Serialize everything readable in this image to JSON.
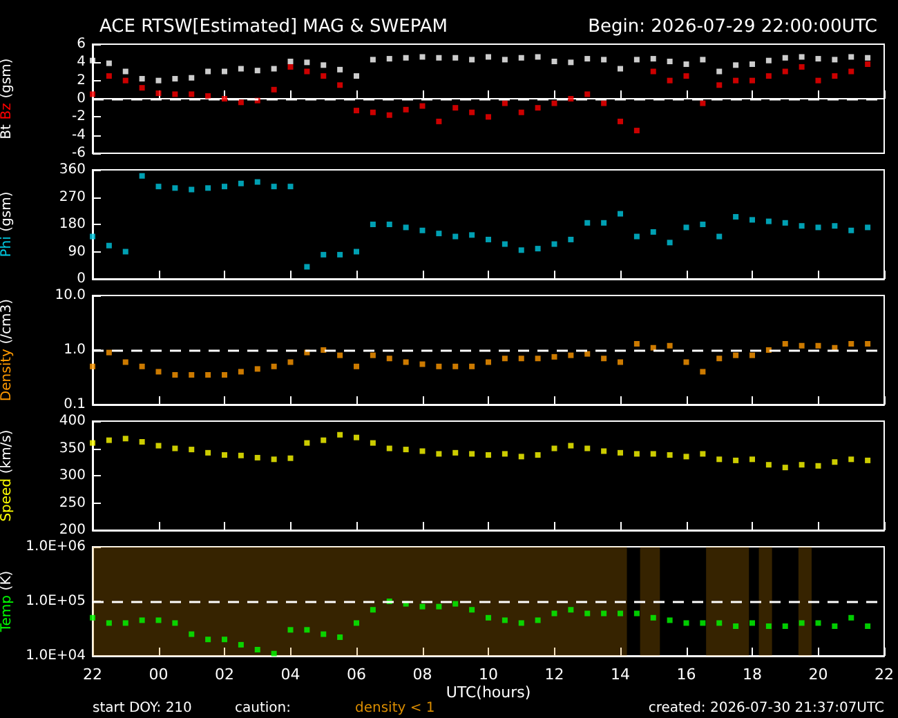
{
  "chart_data": [
    {
      "type": "scatter",
      "title": "ACE RTSW[Estimated] MAG & SWEPAM",
      "subtitle": "Begin: 2026-07-29 22:00:00UTC",
      "ylabel": "(gsm)",
      "marker": "square",
      "tick_labels": "y",
      "xlim": [
        "2026-07-29T22:00",
        "2026-07-30T22:00"
      ],
      "xticks": [
        {
          "value": "2026-07-29T22:00",
          "label": null
        },
        {
          "value": "2026-07-30T00:00",
          "label": null
        },
        {
          "value": "2026-07-30T02:00",
          "label": null
        },
        {
          "value": "2026-07-30T04:00",
          "label": null
        },
        {
          "value": "2026-07-30T06:00",
          "label": null
        },
        {
          "value": "2026-07-30T08:00",
          "label": null
        },
        {
          "value": "2026-07-30T10:00",
          "label": null
        },
        {
          "value": "2026-07-30T12:00",
          "label": null
        },
        {
          "value": "2026-07-30T14:00",
          "label": null
        },
        {
          "value": "2026-07-30T16:00",
          "label": null
        },
        {
          "value": "2026-07-30T18:00",
          "label": null
        },
        {
          "value": "2026-07-30T20:00",
          "label": null
        },
        {
          "value": "2026-07-30T22:00",
          "label": null
        }
      ],
      "ylim": [
        -6,
        6
      ],
      "yticks": [
        -6,
        -4,
        -2,
        0,
        2,
        4,
        6
      ],
      "x": [
        "2026-07-29T22:00",
        "2026-07-29T22:30",
        "2026-07-29T23:00",
        "2026-07-29T23:30",
        "2026-07-30T00:00",
        "2026-07-30T00:30",
        "2026-07-30T01:00",
        "2026-07-30T01:30",
        "2026-07-30T02:00",
        "2026-07-30T02:30",
        "2026-07-30T03:00",
        "2026-07-30T03:30",
        "2026-07-30T04:00",
        "2026-07-30T04:30",
        "2026-07-30T05:00",
        "2026-07-30T05:30",
        "2026-07-30T06:00",
        "2026-07-30T06:30",
        "2026-07-30T07:00",
        "2026-07-30T07:30",
        "2026-07-30T08:00",
        "2026-07-30T08:30",
        "2026-07-30T09:00",
        "2026-07-30T09:30",
        "2026-07-30T10:00",
        "2026-07-30T10:30",
        "2026-07-30T11:00",
        "2026-07-30T11:30",
        "2026-07-30T12:00",
        "2026-07-30T12:30",
        "2026-07-30T13:00",
        "2026-07-30T13:30",
        "2026-07-30T14:00",
        "2026-07-30T14:30",
        "2026-07-30T15:00",
        "2026-07-30T15:30",
        "2026-07-30T16:00",
        "2026-07-30T16:30",
        "2026-07-30T17:00",
        "2026-07-30T17:30",
        "2026-07-30T18:00",
        "2026-07-30T18:30",
        "2026-07-30T19:00",
        "2026-07-30T19:30",
        "2026-07-30T20:00",
        "2026-07-30T20:30",
        "2026-07-30T21:00",
        "2026-07-30T21:30"
      ],
      "series": [
        {
          "name": "Bt",
          "color": "#ffffff",
          "values": [
            4.2,
            3.9,
            3.0,
            2.2,
            2.0,
            2.2,
            2.3,
            3.0,
            3.0,
            3.3,
            3.1,
            3.3,
            4.1,
            4.0,
            3.7,
            3.2,
            2.5,
            4.3,
            4.4,
            4.5,
            4.6,
            4.5,
            4.5,
            4.3,
            4.6,
            4.3,
            4.5,
            4.6,
            4.1,
            4.0,
            4.4,
            4.3,
            3.3,
            4.3,
            4.4,
            4.1,
            3.8,
            4.3,
            3.0,
            3.7,
            3.8,
            4.2,
            4.5,
            4.6,
            4.4,
            4.3,
            4.6,
            4.5
          ]
        },
        {
          "name": "Bz",
          "color": "#ff0000",
          "values": [
            0.5,
            2.5,
            2.0,
            1.2,
            0.6,
            0.5,
            0.5,
            0.3,
            0.0,
            -0.4,
            -0.2,
            1.0,
            3.5,
            3.0,
            2.5,
            1.5,
            -1.3,
            -1.5,
            -1.8,
            -1.2,
            -0.8,
            -2.5,
            -1.0,
            -1.5,
            -2.0,
            -0.5,
            -1.5,
            -1.0,
            -0.5,
            0.0,
            0.5,
            -0.5,
            -2.5,
            -3.5,
            3.0,
            2.0,
            2.5,
            -0.5,
            1.5,
            2.0,
            2.0,
            2.5,
            3.0,
            3.5,
            2.0,
            2.5,
            3.0,
            3.8
          ]
        }
      ],
      "ref_lines": [
        {
          "axis": "y",
          "value": 0,
          "color": "#ffffff",
          "line_style": "dashed"
        }
      ]
    },
    {
      "type": "scatter",
      "ylabel": "(gsm)",
      "marker": "square",
      "tick_labels": "y",
      "xlim": [
        "2026-07-29T22:00",
        "2026-07-30T22:00"
      ],
      "xticks": [
        {
          "value": "2026-07-29T22:00",
          "label": null
        },
        {
          "value": "2026-07-30T00:00",
          "label": null
        },
        {
          "value": "2026-07-30T02:00",
          "label": null
        },
        {
          "value": "2026-07-30T04:00",
          "label": null
        },
        {
          "value": "2026-07-30T06:00",
          "label": null
        },
        {
          "value": "2026-07-30T08:00",
          "label": null
        },
        {
          "value": "2026-07-30T10:00",
          "label": null
        },
        {
          "value": "2026-07-30T12:00",
          "label": null
        },
        {
          "value": "2026-07-30T14:00",
          "label": null
        },
        {
          "value": "2026-07-30T16:00",
          "label": null
        },
        {
          "value": "2026-07-30T18:00",
          "label": null
        },
        {
          "value": "2026-07-30T20:00",
          "label": null
        },
        {
          "value": "2026-07-30T22:00",
          "label": null
        }
      ],
      "ylim": [
        0,
        360
      ],
      "yticks": [
        0,
        90,
        180,
        270,
        360
      ],
      "x": [
        "2026-07-29T22:00",
        "2026-07-29T22:30",
        "2026-07-29T23:00",
        "2026-07-29T23:30",
        "2026-07-30T00:00",
        "2026-07-30T00:30",
        "2026-07-30T01:00",
        "2026-07-30T01:30",
        "2026-07-30T02:00",
        "2026-07-30T02:30",
        "2026-07-30T03:00",
        "2026-07-30T03:30",
        "2026-07-30T04:00",
        "2026-07-30T04:30",
        "2026-07-30T05:00",
        "2026-07-30T05:30",
        "2026-07-30T06:00",
        "2026-07-30T06:30",
        "2026-07-30T07:00",
        "2026-07-30T07:30",
        "2026-07-30T08:00",
        "2026-07-30T08:30",
        "2026-07-30T09:00",
        "2026-07-30T09:30",
        "2026-07-30T10:00",
        "2026-07-30T10:30",
        "2026-07-30T11:00",
        "2026-07-30T11:30",
        "2026-07-30T12:00",
        "2026-07-30T12:30",
        "2026-07-30T13:00",
        "2026-07-30T13:30",
        "2026-07-30T14:00",
        "2026-07-30T14:30",
        "2026-07-30T15:00",
        "2026-07-30T15:30",
        "2026-07-30T16:00",
        "2026-07-30T16:30",
        "2026-07-30T17:00",
        "2026-07-30T17:30",
        "2026-07-30T18:00",
        "2026-07-30T18:30",
        "2026-07-30T19:00",
        "2026-07-30T19:30",
        "2026-07-30T20:00",
        "2026-07-30T20:30",
        "2026-07-30T21:00",
        "2026-07-30T21:30"
      ],
      "series": [
        {
          "name": "Phi",
          "color": "#00c8e0",
          "values": [
            140,
            110,
            90,
            340,
            305,
            300,
            295,
            300,
            305,
            315,
            320,
            305,
            305,
            40,
            80,
            80,
            90,
            180,
            180,
            170,
            160,
            150,
            140,
            145,
            130,
            115,
            95,
            100,
            115,
            130,
            185,
            185,
            215,
            140,
            155,
            120,
            170,
            180,
            140,
            205,
            195,
            190,
            185,
            175,
            170,
            175,
            160,
            170
          ]
        }
      ]
    },
    {
      "type": "scatter",
      "ylabel": "(/cm3)",
      "marker": "square",
      "tick_labels": "y",
      "log": true,
      "xlim": [
        "2026-07-29T22:00",
        "2026-07-30T22:00"
      ],
      "xticks": [
        {
          "value": "2026-07-29T22:00",
          "label": null
        },
        {
          "value": "2026-07-30T00:00",
          "label": null
        },
        {
          "value": "2026-07-30T02:00",
          "label": null
        },
        {
          "value": "2026-07-30T04:00",
          "label": null
        },
        {
          "value": "2026-07-30T06:00",
          "label": null
        },
        {
          "value": "2026-07-30T08:00",
          "label": null
        },
        {
          "value": "2026-07-30T10:00",
          "label": null
        },
        {
          "value": "2026-07-30T12:00",
          "label": null
        },
        {
          "value": "2026-07-30T14:00",
          "label": null
        },
        {
          "value": "2026-07-30T16:00",
          "label": null
        },
        {
          "value": "2026-07-30T18:00",
          "label": null
        },
        {
          "value": "2026-07-30T20:00",
          "label": null
        },
        {
          "value": "2026-07-30T22:00",
          "label": null
        }
      ],
      "ylim": [
        0.1,
        10
      ],
      "yticks": [
        0.1,
        {
          "value": 1,
          "label": "1.0"
        },
        {
          "value": 10,
          "label": "10.0"
        }
      ],
      "x": [
        "2026-07-29T22:00",
        "2026-07-29T22:30",
        "2026-07-29T23:00",
        "2026-07-29T23:30",
        "2026-07-30T00:00",
        "2026-07-30T00:30",
        "2026-07-30T01:00",
        "2026-07-30T01:30",
        "2026-07-30T02:00",
        "2026-07-30T02:30",
        "2026-07-30T03:00",
        "2026-07-30T03:30",
        "2026-07-30T04:00",
        "2026-07-30T04:30",
        "2026-07-30T05:00",
        "2026-07-30T05:30",
        "2026-07-30T06:00",
        "2026-07-30T06:30",
        "2026-07-30T07:00",
        "2026-07-30T07:30",
        "2026-07-30T08:00",
        "2026-07-30T08:30",
        "2026-07-30T09:00",
        "2026-07-30T09:30",
        "2026-07-30T10:00",
        "2026-07-30T10:30",
        "2026-07-30T11:00",
        "2026-07-30T11:30",
        "2026-07-30T12:00",
        "2026-07-30T12:30",
        "2026-07-30T13:00",
        "2026-07-30T13:30",
        "2026-07-30T14:00",
        "2026-07-30T14:30",
        "2026-07-30T15:00",
        "2026-07-30T15:30",
        "2026-07-30T16:00",
        "2026-07-30T16:30",
        "2026-07-30T17:00",
        "2026-07-30T17:30",
        "2026-07-30T18:00",
        "2026-07-30T18:30",
        "2026-07-30T19:00",
        "2026-07-30T19:30",
        "2026-07-30T20:00",
        "2026-07-30T20:30",
        "2026-07-30T21:00",
        "2026-07-30T21:30"
      ],
      "series": [
        {
          "name": "Density",
          "color": "#ff9900",
          "values": [
            0.5,
            0.9,
            0.6,
            0.5,
            0.4,
            0.35,
            0.35,
            0.35,
            0.35,
            0.4,
            0.45,
            0.5,
            0.6,
            0.9,
            1.0,
            0.8,
            0.5,
            0.8,
            0.7,
            0.6,
            0.55,
            0.5,
            0.5,
            0.5,
            0.6,
            0.7,
            0.7,
            0.7,
            0.75,
            0.8,
            0.85,
            0.7,
            0.6,
            1.3,
            1.1,
            1.2,
            0.6,
            0.4,
            0.7,
            0.8,
            0.8,
            1.0,
            1.3,
            1.2,
            1.2,
            1.1,
            1.3,
            1.3
          ]
        }
      ],
      "ref_lines": [
        {
          "axis": "y",
          "value": 1,
          "color": "#ffffff",
          "line_style": "dashed"
        }
      ]
    },
    {
      "type": "scatter",
      "ylabel": "(km/s)",
      "marker": "square",
      "tick_labels": "y",
      "xlim": [
        "2026-07-29T22:00",
        "2026-07-30T22:00"
      ],
      "xticks": [
        {
          "value": "2026-07-29T22:00",
          "label": null
        },
        {
          "value": "2026-07-30T00:00",
          "label": null
        },
        {
          "value": "2026-07-30T02:00",
          "label": null
        },
        {
          "value": "2026-07-30T04:00",
          "label": null
        },
        {
          "value": "2026-07-30T06:00",
          "label": null
        },
        {
          "value": "2026-07-30T08:00",
          "label": null
        },
        {
          "value": "2026-07-30T10:00",
          "label": null
        },
        {
          "value": "2026-07-30T12:00",
          "label": null
        },
        {
          "value": "2026-07-30T14:00",
          "label": null
        },
        {
          "value": "2026-07-30T16:00",
          "label": null
        },
        {
          "value": "2026-07-30T18:00",
          "label": null
        },
        {
          "value": "2026-07-30T20:00",
          "label": null
        },
        {
          "value": "2026-07-30T22:00",
          "label": null
        }
      ],
      "ylim": [
        200,
        400
      ],
      "yticks": [
        200,
        250,
        300,
        350,
        400
      ],
      "x": [
        "2026-07-29T22:00",
        "2026-07-29T22:30",
        "2026-07-29T23:00",
        "2026-07-29T23:30",
        "2026-07-30T00:00",
        "2026-07-30T00:30",
        "2026-07-30T01:00",
        "2026-07-30T01:30",
        "2026-07-30T02:00",
        "2026-07-30T02:30",
        "2026-07-30T03:00",
        "2026-07-30T03:30",
        "2026-07-30T04:00",
        "2026-07-30T04:30",
        "2026-07-30T05:00",
        "2026-07-30T05:30",
        "2026-07-30T06:00",
        "2026-07-30T06:30",
        "2026-07-30T07:00",
        "2026-07-30T07:30",
        "2026-07-30T08:00",
        "2026-07-30T08:30",
        "2026-07-30T09:00",
        "2026-07-30T09:30",
        "2026-07-30T10:00",
        "2026-07-30T10:30",
        "2026-07-30T11:00",
        "2026-07-30T11:30",
        "2026-07-30T12:00",
        "2026-07-30T12:30",
        "2026-07-30T13:00",
        "2026-07-30T13:30",
        "2026-07-30T14:00",
        "2026-07-30T14:30",
        "2026-07-30T15:00",
        "2026-07-30T15:30",
        "2026-07-30T16:00",
        "2026-07-30T16:30",
        "2026-07-30T17:00",
        "2026-07-30T17:30",
        "2026-07-30T18:00",
        "2026-07-30T18:30",
        "2026-07-30T19:00",
        "2026-07-30T19:30",
        "2026-07-30T20:00",
        "2026-07-30T20:30",
        "2026-07-30T21:00",
        "2026-07-30T21:30"
      ],
      "series": [
        {
          "name": "Speed",
          "color": "#ffff00",
          "values": [
            360,
            365,
            368,
            362,
            355,
            350,
            348,
            342,
            338,
            337,
            333,
            330,
            332,
            360,
            365,
            375,
            370,
            360,
            350,
            348,
            345,
            340,
            342,
            340,
            338,
            340,
            335,
            338,
            350,
            355,
            350,
            345,
            342,
            340,
            340,
            338,
            335,
            340,
            330,
            328,
            330,
            320,
            315,
            320,
            318,
            325,
            330,
            328
          ]
        }
      ]
    },
    {
      "type": "scatter",
      "ylabel": "(K)",
      "xlabel": "UTC(hours)",
      "marker": "square",
      "log": true,
      "xlim": [
        "2026-07-29T22:00",
        "2026-07-30T22:00"
      ],
      "xticks": [
        {
          "value": "2026-07-29T22:00",
          "label": "22"
        },
        {
          "value": "2026-07-30T00:00",
          "label": "00"
        },
        {
          "value": "2026-07-30T02:00",
          "label": "02"
        },
        {
          "value": "2026-07-30T04:00",
          "label": "04"
        },
        {
          "value": "2026-07-30T06:00",
          "label": "06"
        },
        {
          "value": "2026-07-30T08:00",
          "label": "08"
        },
        {
          "value": "2026-07-30T10:00",
          "label": "10"
        },
        {
          "value": "2026-07-30T12:00",
          "label": "12"
        },
        {
          "value": "2026-07-30T14:00",
          "label": "14"
        },
        {
          "value": "2026-07-30T16:00",
          "label": "16"
        },
        {
          "value": "2026-07-30T18:00",
          "label": "18"
        },
        {
          "value": "2026-07-30T20:00",
          "label": "20"
        },
        {
          "value": "2026-07-30T22:00",
          "label": "22"
        }
      ],
      "ylim": [
        10000,
        1000000
      ],
      "yticks": [
        {
          "value": 10000,
          "label": "1.0E+04"
        },
        {
          "value": 100000,
          "label": "1.0E+05"
        },
        {
          "value": 1000000,
          "label": "1.0E+06"
        }
      ],
      "x": [
        "2026-07-29T22:00",
        "2026-07-29T22:30",
        "2026-07-29T23:00",
        "2026-07-29T23:30",
        "2026-07-30T00:00",
        "2026-07-30T00:30",
        "2026-07-30T01:00",
        "2026-07-30T01:30",
        "2026-07-30T02:00",
        "2026-07-30T02:30",
        "2026-07-30T03:00",
        "2026-07-30T03:30",
        "2026-07-30T04:00",
        "2026-07-30T04:30",
        "2026-07-30T05:00",
        "2026-07-30T05:30",
        "2026-07-30T06:00",
        "2026-07-30T06:30",
        "2026-07-30T07:00",
        "2026-07-30T07:30",
        "2026-07-30T08:00",
        "2026-07-30T08:30",
        "2026-07-30T09:00",
        "2026-07-30T09:30",
        "2026-07-30T10:00",
        "2026-07-30T10:30",
        "2026-07-30T11:00",
        "2026-07-30T11:30",
        "2026-07-30T12:00",
        "2026-07-30T12:30",
        "2026-07-30T13:00",
        "2026-07-30T13:30",
        "2026-07-30T14:00",
        "2026-07-30T14:30",
        "2026-07-30T15:00",
        "2026-07-30T15:30",
        "2026-07-30T16:00",
        "2026-07-30T16:30",
        "2026-07-30T17:00",
        "2026-07-30T17:30",
        "2026-07-30T18:00",
        "2026-07-30T18:30",
        "2026-07-30T19:00",
        "2026-07-30T19:30",
        "2026-07-30T20:00",
        "2026-07-30T20:30",
        "2026-07-30T21:00",
        "2026-07-30T21:30"
      ],
      "series": [
        {
          "name": "Temp",
          "color": "#00ff00",
          "values": [
            50000,
            40000,
            40000,
            45000,
            45000,
            40000,
            25000,
            20000,
            20000,
            16000,
            13000,
            11000,
            30000,
            30000,
            25000,
            22000,
            40000,
            70000,
            100000,
            90000,
            80000,
            80000,
            90000,
            70000,
            50000,
            45000,
            40000,
            45000,
            60000,
            70000,
            60000,
            60000,
            60000,
            60000,
            50000,
            45000,
            40000,
            40000,
            40000,
            35000,
            40000,
            35000,
            35000,
            40000,
            40000,
            35000,
            50000,
            35000
          ]
        }
      ],
      "ref_lines": [
        {
          "axis": "y",
          "value": 100000,
          "color": "#ffffff",
          "line_style": "dashed"
        }
      ],
      "bands": [
        {
          "axis": "x",
          "from": "2026-07-29T22:00",
          "to": "2026-07-30T14:12",
          "label": "density < 1",
          "color": "#d98c00"
        },
        {
          "axis": "x",
          "from": "2026-07-30T14:36",
          "to": "2026-07-30T15:12",
          "color": "#d98c00"
        },
        {
          "axis": "x",
          "from": "2026-07-30T16:36",
          "to": "2026-07-30T17:54",
          "color": "#d98c00"
        },
        {
          "axis": "x",
          "from": "2026-07-30T18:12",
          "to": "2026-07-30T18:36",
          "color": "#d98c00"
        },
        {
          "axis": "x",
          "from": "2026-07-30T19:24",
          "to": "2026-07-30T19:48",
          "color": "#d98c00"
        }
      ],
      "annotations": [
        "start DOY: 210",
        "caution:",
        "created: 2026-07-30 21:37:07UTC"
      ]
    }
  ]
}
